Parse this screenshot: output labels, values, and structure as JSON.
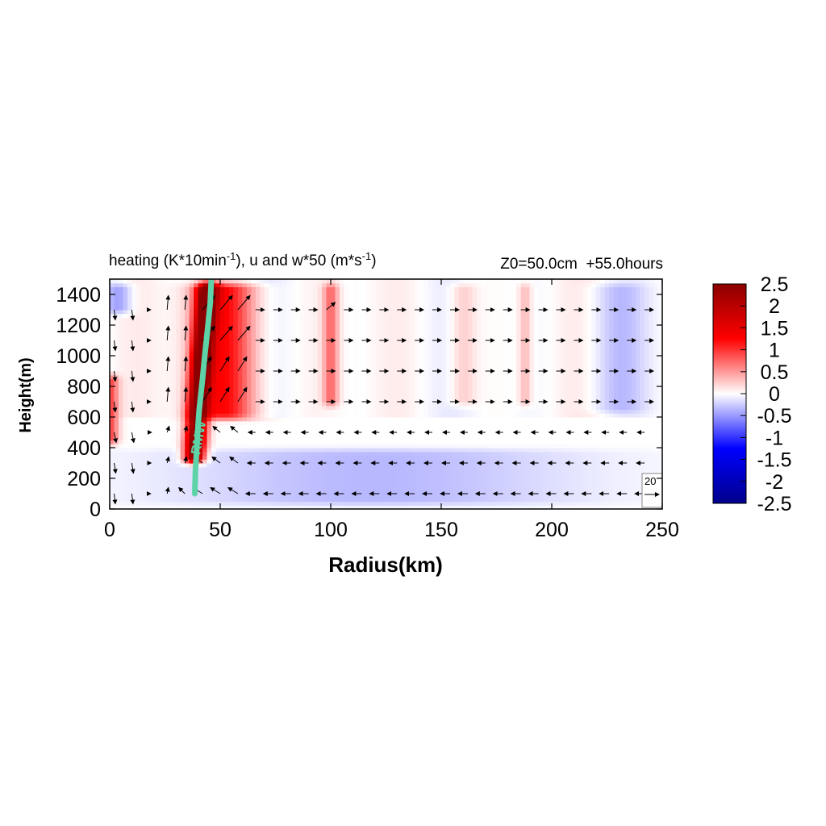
{
  "chart_data": {
    "type": "heatmap",
    "title_main": "heating (K*10min",
    "title_sup1": "-1",
    "title_mid": "), u and w*50 (m*s",
    "title_sup2": "-1",
    "title_end": ")",
    "title_right": "Z0=50.0cm  +55.0hours",
    "xlabel": "Radius(km)",
    "ylabel": "Height(m)",
    "xlim": [
      0,
      250
    ],
    "ylim": [
      0,
      1500
    ],
    "xticks": [
      "0",
      "50",
      "100",
      "150",
      "200",
      "250"
    ],
    "yticks": [
      "0",
      "200",
      "400",
      "600",
      "800",
      "1000",
      "1200",
      "1400"
    ],
    "colorbar": {
      "range": [
        -2.5,
        2.5
      ],
      "ticks": [
        "2.5",
        "2",
        "1.5",
        "1",
        "0.5",
        "0",
        "-0.5",
        "-1",
        "-1.5",
        "-2",
        "-2.5"
      ]
    },
    "rmw_label": "RMW",
    "rmw_line": [
      [
        38.5,
        100
      ],
      [
        38.8,
        250
      ],
      [
        39.2,
        350
      ],
      [
        40,
        550
      ],
      [
        40.5,
        650
      ],
      [
        42,
        850
      ],
      [
        43,
        1000
      ],
      [
        44.5,
        1200
      ],
      [
        45.5,
        1350
      ],
      [
        46,
        1500
      ]
    ],
    "vector_levels_m": [
      100,
      300,
      500,
      700,
      900,
      1100,
      1300
    ],
    "reference_vector": {
      "label": "20",
      "value": 20
    },
    "heating_bands": [
      {
        "r": 38,
        "width": 4.5,
        "amp": 2.8,
        "zmin": 280,
        "zmax": 1500
      },
      {
        "r": 52,
        "width": 14,
        "amp": 1.2,
        "zmin": 560,
        "zmax": 1500
      },
      {
        "r": 100,
        "width": 3.5,
        "amp": 0.7,
        "zmin": 650,
        "zmax": 1500
      },
      {
        "r": 160,
        "width": 6,
        "amp": 0.3,
        "zmin": 650,
        "zmax": 1500
      },
      {
        "r": 188,
        "width": 3,
        "amp": 0.35,
        "zmin": 650,
        "zmax": 1500
      },
      {
        "r": 0,
        "width": 4,
        "amp": 0.9,
        "zmin": 400,
        "zmax": 900
      }
    ],
    "cooling_bands": [
      {
        "r": 120,
        "width": 90,
        "amp": -0.35,
        "zmin": 0,
        "zmax": 420
      },
      {
        "r": 230,
        "width": 12,
        "amp": -0.3,
        "zmin": 600,
        "zmax": 1500
      },
      {
        "r": 4,
        "width": 6,
        "amp": -0.5,
        "zmin": 1250,
        "zmax": 1500
      }
    ]
  }
}
